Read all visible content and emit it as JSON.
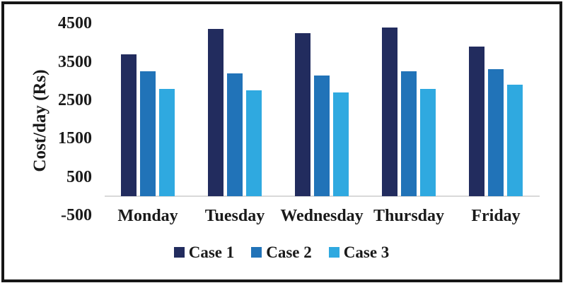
{
  "chart_data": {
    "type": "bar",
    "title": "",
    "categories": [
      "Monday",
      "Tuesday",
      "Wednesday",
      "Thursday",
      "Friday"
    ],
    "series": [
      {
        "name": "Case 1",
        "color": "#222c5e",
        "values": [
          3700,
          4350,
          4250,
          4400,
          3900
        ]
      },
      {
        "name": "Case 2",
        "color": "#2173b8",
        "values": [
          3250,
          3200,
          3150,
          3250,
          3300
        ]
      },
      {
        "name": "Case 3",
        "color": "#2fa9e0",
        "values": [
          2800,
          2750,
          2700,
          2800,
          2900
        ]
      }
    ],
    "xlabel": "",
    "ylabel": "Cost/day (Rs)",
    "ylim": [
      -500,
      4500
    ],
    "yticks": [
      4500,
      3500,
      2500,
      1500,
      500,
      -500
    ],
    "grid": false,
    "legend_position": "bottom",
    "baseline_color": "#d9d9d9",
    "text_color": "#1a1a1a"
  }
}
